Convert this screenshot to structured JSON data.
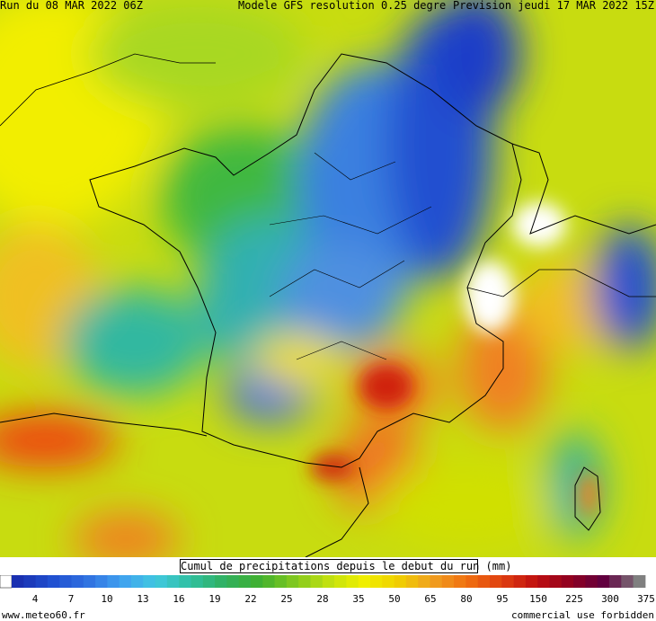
{
  "header": {
    "left": "Run du 08 MAR 2022 06Z",
    "center": "Modele GFS resolution 0.25 degre",
    "right": "Prevision jeudi 17 MAR 2022 15Z"
  },
  "legend": {
    "title": "Cumul de precipitations depuis le debut du run (mm)",
    "ticks": [
      4,
      7,
      10,
      13,
      16,
      19,
      22,
      25,
      28,
      35,
      50,
      65,
      80,
      95,
      150,
      225,
      300,
      375
    ]
  },
  "footer": {
    "left": "www.meteo60.fr",
    "right": "commercial use forbidden"
  }
}
